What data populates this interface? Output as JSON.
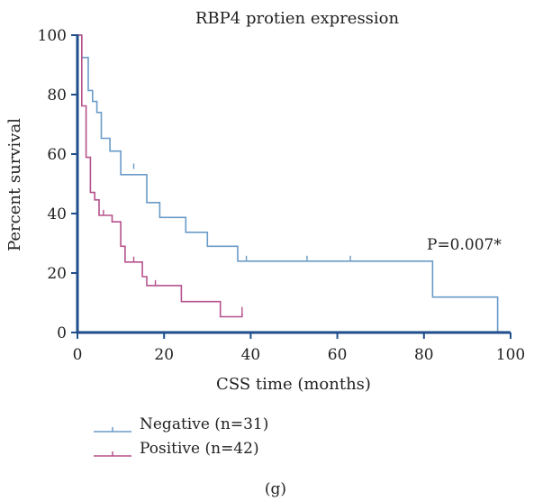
{
  "chart_data": {
    "type": "line",
    "step": true,
    "title": "RBP4 protien expression",
    "xlabel": "CSS time (months)",
    "ylabel": "Percent survival",
    "xlim": [
      0,
      100
    ],
    "ylim": [
      0,
      100
    ],
    "xticks": [
      "0",
      "20",
      "40",
      "60",
      "80",
      "100"
    ],
    "yticks": [
      "0",
      "20",
      "40",
      "60",
      "80",
      "100"
    ],
    "grid": false,
    "legend_position": "bottom-left",
    "annotation": "P=0.007*",
    "panel_label": "(g)",
    "series": [
      {
        "name": "Negative (n=31)",
        "color": "#6a9bc8",
        "points": [
          [
            0,
            100
          ],
          [
            1,
            100
          ],
          [
            1,
            92.5
          ],
          [
            2.5,
            92.5
          ],
          [
            2.5,
            81.4
          ],
          [
            3.5,
            81.4
          ],
          [
            3.5,
            77.7
          ],
          [
            4.5,
            77.7
          ],
          [
            4.5,
            74
          ],
          [
            5.5,
            74
          ],
          [
            5.5,
            65.3
          ],
          [
            7.5,
            65.3
          ],
          [
            7.5,
            61
          ],
          [
            10,
            61
          ],
          [
            10,
            53.1
          ],
          [
            16,
            53.1
          ],
          [
            16,
            43.7
          ],
          [
            19,
            43.7
          ],
          [
            19,
            38.7
          ],
          [
            25,
            38.7
          ],
          [
            25,
            33.7
          ],
          [
            30,
            33.7
          ],
          [
            30,
            29
          ],
          [
            37,
            29
          ],
          [
            37,
            24
          ],
          [
            82,
            24
          ],
          [
            82,
            11.9
          ],
          [
            97,
            11.9
          ],
          [
            97,
            0
          ]
        ],
        "censors": [
          [
            13,
            55
          ],
          [
            39,
            24
          ],
          [
            53,
            24
          ],
          [
            63,
            24
          ]
        ]
      },
      {
        "name": "Positive (n=42)",
        "color": "#b5528c",
        "points": [
          [
            0,
            100
          ],
          [
            1,
            100
          ],
          [
            1,
            76.2
          ],
          [
            2,
            76.2
          ],
          [
            2,
            58.9
          ],
          [
            3,
            58.9
          ],
          [
            3,
            47.1
          ],
          [
            4,
            47.1
          ],
          [
            4,
            44.6
          ],
          [
            5,
            44.6
          ],
          [
            5,
            39.4
          ],
          [
            8,
            39.4
          ],
          [
            8,
            37.2
          ],
          [
            10,
            37.2
          ],
          [
            10,
            29
          ],
          [
            11,
            29
          ],
          [
            11,
            23.7
          ],
          [
            15,
            23.7
          ],
          [
            15,
            18.8
          ],
          [
            16,
            18.8
          ],
          [
            16,
            15.8
          ],
          [
            24,
            15.8
          ],
          [
            24,
            10.4
          ],
          [
            33,
            10.4
          ],
          [
            33,
            5.3
          ],
          [
            38,
            5.3
          ],
          [
            38,
            6.8
          ]
        ],
        "censors": [
          [
            6,
            39.4
          ],
          [
            13,
            23.7
          ],
          [
            18,
            15.8
          ],
          [
            38,
            6.8
          ]
        ]
      }
    ]
  }
}
